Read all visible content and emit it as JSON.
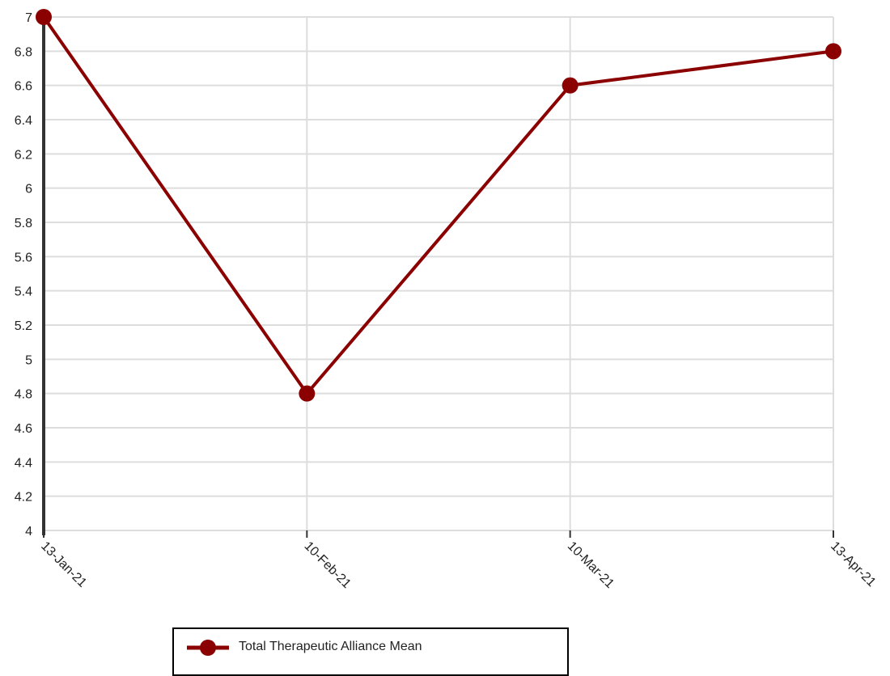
{
  "chart_data": {
    "type": "line",
    "title": "",
    "xlabel": "",
    "ylabel": "",
    "categories": [
      "13-Jan-21",
      "10-Feb-21",
      "10-Mar-21",
      "13-Apr-21"
    ],
    "series": [
      {
        "name": "Total Therapeutic Alliance Mean",
        "values": [
          7,
          4.8,
          6.6,
          6.8
        ],
        "color": "#8b0000"
      }
    ],
    "ylim": [
      4,
      7
    ],
    "yticks": [
      "4",
      "4.2",
      "4.4",
      "4.6",
      "4.8",
      "5",
      "5.2",
      "5.4",
      "5.6",
      "5.8",
      "6",
      "6.2",
      "6.4",
      "6.6",
      "6.8",
      "7"
    ],
    "grid": true,
    "legend_position": "bottom"
  },
  "legend": {
    "label": "Total Therapeutic Alliance Mean"
  }
}
